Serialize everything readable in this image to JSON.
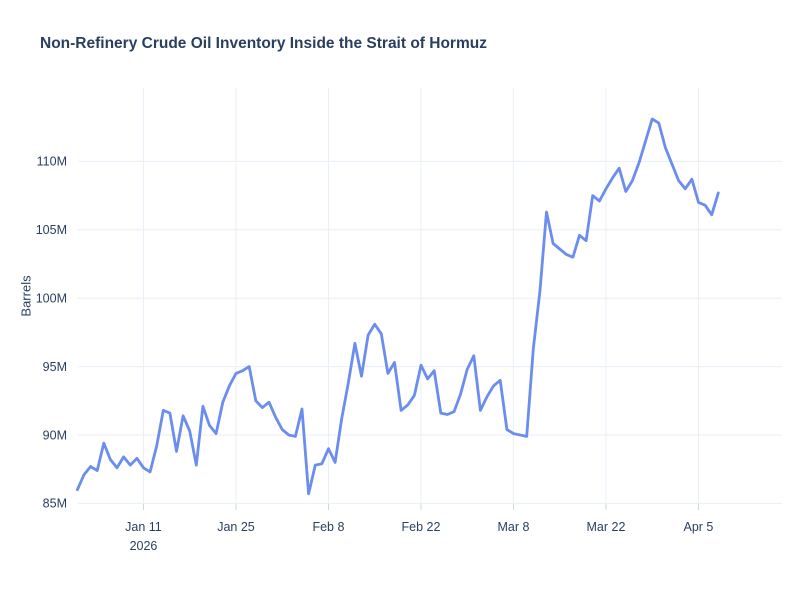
{
  "chart_data": {
    "type": "line",
    "title": "Non-Refinery Crude Oil Inventory Inside the Strait of Hormuz",
    "xlabel": "",
    "ylabel": "Barrels",
    "values_in": "millions of barrels",
    "grid": true,
    "legend": false,
    "ylim": [
      84,
      115.5
    ],
    "xlim": [
      "2026-01-01",
      "2026-04-14"
    ],
    "colors": {
      "line": "#6a8dee",
      "grid": "#e9eef7",
      "tick": "#ccd6e4",
      "text": "#2a3f5f",
      "background": "#ffffff"
    },
    "y_ticks": [
      {
        "value": 85,
        "label": "85M"
      },
      {
        "value": 90,
        "label": "90M"
      },
      {
        "value": 95,
        "label": "95M"
      },
      {
        "value": 100,
        "label": "100M"
      },
      {
        "value": 105,
        "label": "105M"
      },
      {
        "value": 110,
        "label": "110M"
      }
    ],
    "x_ticks": [
      {
        "date": "2026-01-11",
        "label": "Jan 11",
        "sublabel": "2026"
      },
      {
        "date": "2026-01-25",
        "label": "Jan 25"
      },
      {
        "date": "2026-02-08",
        "label": "Feb 8"
      },
      {
        "date": "2026-02-22",
        "label": "Feb 22"
      },
      {
        "date": "2026-03-08",
        "label": "Mar 8"
      },
      {
        "date": "2026-03-22",
        "label": "Mar 22"
      },
      {
        "date": "2026-04-05",
        "label": "Apr 5"
      }
    ],
    "series": [
      {
        "name": "Non-Refinery Crude Oil Inventory",
        "color": "#6a8dee",
        "dates": [
          "2026-01-01",
          "2026-01-02",
          "2026-01-03",
          "2026-01-04",
          "2026-01-05",
          "2026-01-06",
          "2026-01-07",
          "2026-01-08",
          "2026-01-09",
          "2026-01-10",
          "2026-01-11",
          "2026-01-12",
          "2026-01-13",
          "2026-01-14",
          "2026-01-15",
          "2026-01-16",
          "2026-01-17",
          "2026-01-18",
          "2026-01-19",
          "2026-01-20",
          "2026-01-21",
          "2026-01-22",
          "2026-01-23",
          "2026-01-24",
          "2026-01-25",
          "2026-01-26",
          "2026-01-27",
          "2026-01-28",
          "2026-01-29",
          "2026-01-30",
          "2026-01-31",
          "2026-02-01",
          "2026-02-02",
          "2026-02-03",
          "2026-02-04",
          "2026-02-05",
          "2026-02-06",
          "2026-02-07",
          "2026-02-08",
          "2026-02-09",
          "2026-02-10",
          "2026-02-11",
          "2026-02-12",
          "2026-02-13",
          "2026-02-14",
          "2026-02-15",
          "2026-02-16",
          "2026-02-17",
          "2026-02-18",
          "2026-02-19",
          "2026-02-20",
          "2026-02-21",
          "2026-02-22",
          "2026-02-23",
          "2026-02-24",
          "2026-02-25",
          "2026-02-26",
          "2026-02-27",
          "2026-02-28",
          "2026-03-01",
          "2026-03-02",
          "2026-03-03",
          "2026-03-04",
          "2026-03-05",
          "2026-03-06",
          "2026-03-07",
          "2026-03-08",
          "2026-03-09",
          "2026-03-10",
          "2026-03-11",
          "2026-03-12",
          "2026-03-13",
          "2026-03-14",
          "2026-03-15",
          "2026-03-16",
          "2026-03-17",
          "2026-03-18",
          "2026-03-19",
          "2026-03-20",
          "2026-03-21",
          "2026-03-22",
          "2026-03-23",
          "2026-03-24",
          "2026-03-25",
          "2026-03-26",
          "2026-03-27",
          "2026-03-28",
          "2026-03-29",
          "2026-03-30",
          "2026-03-31",
          "2026-04-01",
          "2026-04-02",
          "2026-04-03",
          "2026-04-04",
          "2026-04-05",
          "2026-04-06",
          "2026-04-07",
          "2026-04-08"
        ],
        "values": [
          86.0,
          87.1,
          87.7,
          87.4,
          89.4,
          88.2,
          87.6,
          88.4,
          87.8,
          88.3,
          87.6,
          87.3,
          89.2,
          91.8,
          91.6,
          88.8,
          91.4,
          90.3,
          87.8,
          92.1,
          90.7,
          90.1,
          92.4,
          93.6,
          94.5,
          94.7,
          95.0,
          92.5,
          92.0,
          92.4,
          91.3,
          90.4,
          90.0,
          89.9,
          91.9,
          85.7,
          87.8,
          87.9,
          89.0,
          88.0,
          91.2,
          93.8,
          96.7,
          94.3,
          97.3,
          98.1,
          97.4,
          94.5,
          95.3,
          91.8,
          92.2,
          92.9,
          95.1,
          94.1,
          94.7,
          91.6,
          91.5,
          91.7,
          93.0,
          94.8,
          95.8,
          91.8,
          92.8,
          93.6,
          94.0,
          90.4,
          90.1,
          90.0,
          89.9,
          96.3,
          100.5,
          106.3,
          104.0,
          103.6,
          103.2,
          103.0,
          104.6,
          104.2,
          107.5,
          107.1,
          108.0,
          108.8,
          109.5,
          107.8,
          108.6,
          109.9,
          111.5,
          113.1,
          112.8,
          111.0,
          109.8,
          108.6,
          108.0,
          108.7,
          107.0,
          106.8,
          106.1,
          107.7
        ]
      }
    ]
  }
}
